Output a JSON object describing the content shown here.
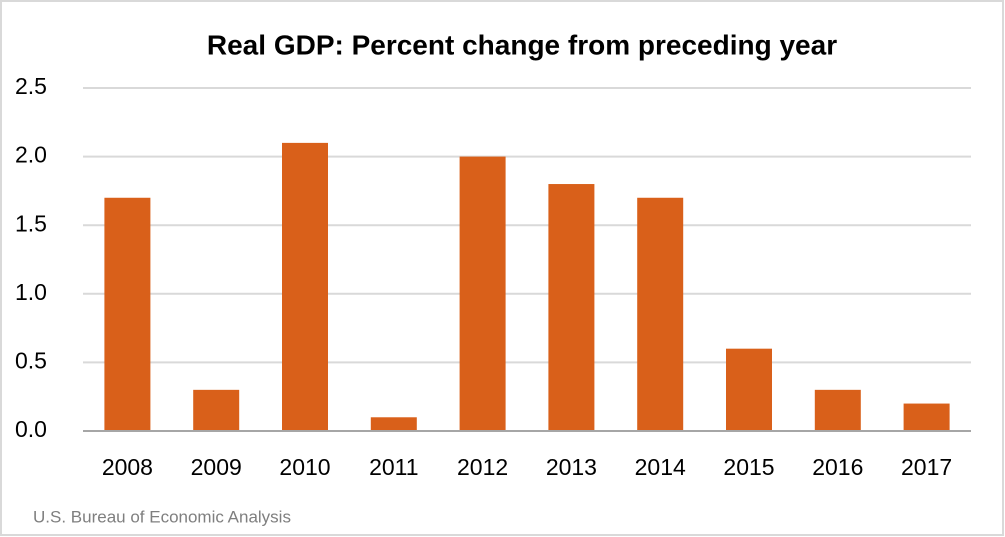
{
  "chart_data": {
    "type": "bar",
    "title": "Real GDP:  Percent change from preceding year",
    "categories": [
      "2008",
      "2009",
      "2010",
      "2011",
      "2012",
      "2013",
      "2014",
      "2015",
      "2016",
      "2017"
    ],
    "values": [
      1.7,
      0.3,
      2.1,
      0.1,
      2.0,
      1.8,
      1.7,
      0.6,
      0.3,
      0.2
    ],
    "color": "#d9601a",
    "ylim": [
      0,
      2.5
    ],
    "yticks": [
      {
        "value": 0,
        "label": "0.0"
      },
      0.5,
      {
        "value": 1,
        "label": "1.0"
      },
      1.5,
      {
        "value": 2,
        "label": "2.0"
      },
      2.5
    ],
    "grid": true,
    "source": "U.S. Bureau of Economic Analysis"
  }
}
